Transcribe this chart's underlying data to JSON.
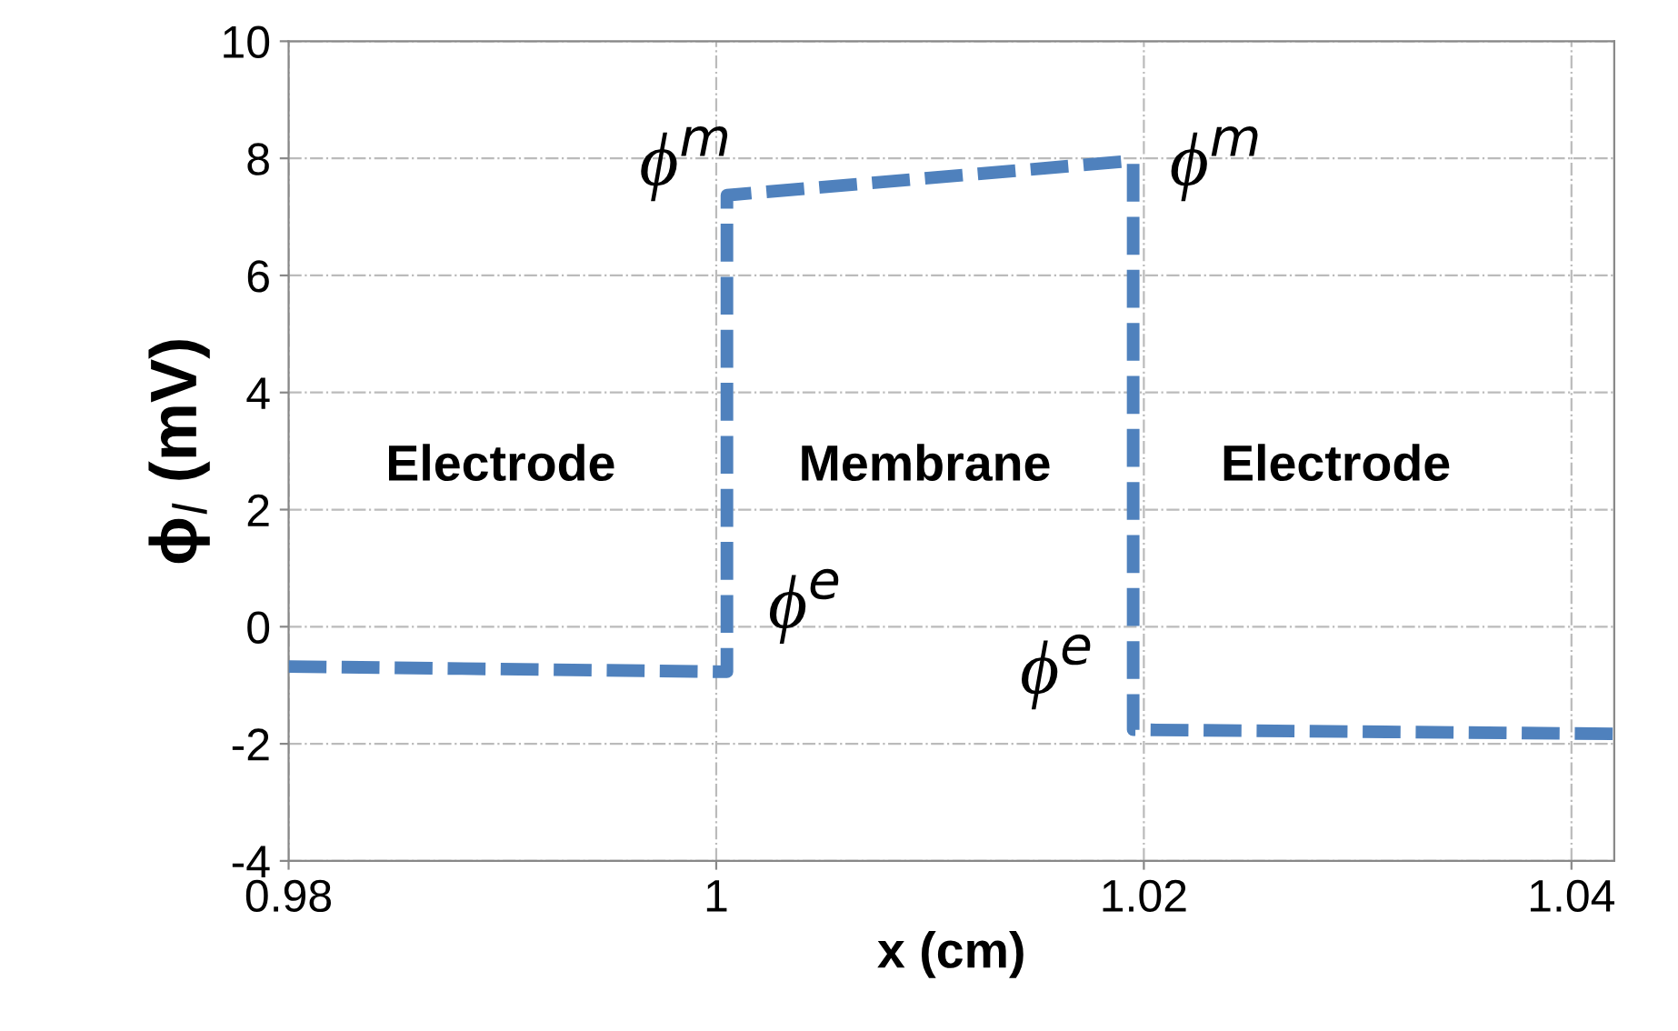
{
  "chart_data": {
    "type": "line",
    "xlabel": "x (cm)",
    "ylabel": "ϕ$_{l}$ (mV)",
    "series": [
      {
        "color": "#4f81bd",
        "x": [
          0.98,
          1.0005,
          1.0005,
          1.0195,
          1.0195,
          1.042
        ],
        "values": [
          -0.68,
          -0.77,
          7.37,
          7.96,
          -1.76,
          -1.83
        ]
      }
    ],
    "xlim": [
      0.98,
      1.042
    ],
    "xticks": [
      0.98,
      1,
      1.02,
      1.04
    ],
    "ylim": [
      -4,
      10
    ],
    "yticks": [
      -4,
      -2,
      0,
      2,
      4,
      6,
      8,
      10
    ],
    "grid": true,
    "line_style": "dashed",
    "marker": "none",
    "annotations": [
      "Electrode",
      "Membrane",
      "Electrode",
      "ϕ$^{m}$",
      "ϕ$^{m}$",
      "ϕ$^{e}$",
      "ϕ$^{e}$"
    ]
  }
}
